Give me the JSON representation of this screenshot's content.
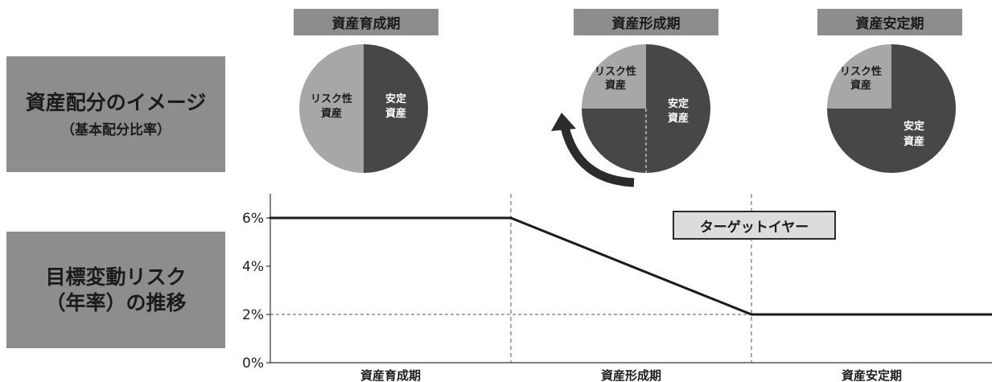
{
  "side_labels": {
    "allocation_title": "資産配分のイメージ",
    "allocation_sub": "（基本配分比率）",
    "risk_title_line1": "目標変動リスク",
    "risk_title_line2": "（年率）の推移"
  },
  "phases": [
    {
      "label": "資産育成期",
      "risky_label_1": "リスク性",
      "risky_label_2": "資産",
      "stable_label_1": "安定",
      "stable_label_2": "資産",
      "risky_share": 0.5
    },
    {
      "label": "資産形成期",
      "risky_label_1": "リスク性",
      "risky_label_2": "資産",
      "stable_label_1": "安定",
      "stable_label_2": "資産",
      "risky_share": 0.25
    },
    {
      "label": "資産安定期",
      "risky_label_1": "リスク性",
      "risky_label_2": "資産",
      "stable_label_1": "安定",
      "stable_label_2": "資産",
      "risky_share": 0.25
    }
  ],
  "target_year_label": "ターゲットイヤー",
  "colors": {
    "label_box": "#8d8d8d",
    "risky": "#a7a7a7",
    "stable": "#474747",
    "line": "#1a1a1a",
    "target_box": "#dcdcdc"
  },
  "chart_data": {
    "type": "line",
    "categories": [
      "資産育成期",
      "資産形成期",
      "資産安定期"
    ],
    "yticks": [
      "0%",
      "2%",
      "4%",
      "6%"
    ],
    "ylim": [
      0,
      7
    ],
    "x": [
      0,
      1,
      2,
      3
    ],
    "y": [
      6,
      6,
      2,
      2
    ],
    "reference_line_y": 2,
    "xlabel": "",
    "ylabel": ""
  }
}
